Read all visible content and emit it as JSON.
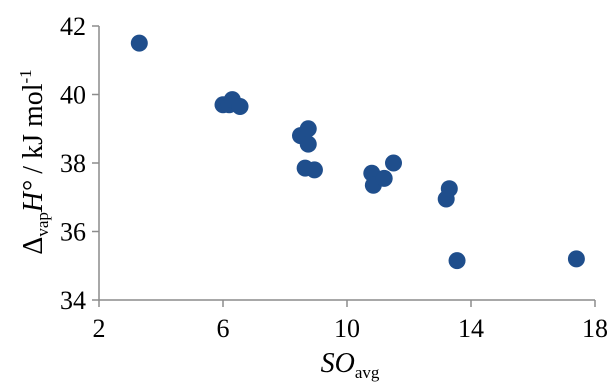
{
  "chart_data": {
    "type": "scatter",
    "xlabel": {
      "main": "SO",
      "sub": "avg"
    },
    "ylabel": {
      "delta": "Δ",
      "sub": "vap",
      "symbol": "H°",
      "unit": " / kJ mol",
      "sup": "-1"
    },
    "xlim": [
      2,
      18
    ],
    "ylim": [
      34,
      42
    ],
    "xticks": [
      2,
      6,
      10,
      14,
      18
    ],
    "yticks": [
      34,
      36,
      38,
      40,
      42
    ],
    "marker_color": "#1f4e8c",
    "grid": false,
    "legend": "none",
    "points": [
      {
        "x": 3.3,
        "y": 41.5
      },
      {
        "x": 6.0,
        "y": 39.7
      },
      {
        "x": 6.2,
        "y": 39.7
      },
      {
        "x": 6.3,
        "y": 39.85
      },
      {
        "x": 6.55,
        "y": 39.65
      },
      {
        "x": 8.5,
        "y": 38.8
      },
      {
        "x": 8.75,
        "y": 39.0
      },
      {
        "x": 8.75,
        "y": 38.55
      },
      {
        "x": 8.65,
        "y": 37.85
      },
      {
        "x": 8.95,
        "y": 37.8
      },
      {
        "x": 10.8,
        "y": 37.7
      },
      {
        "x": 10.85,
        "y": 37.35
      },
      {
        "x": 11.2,
        "y": 37.55
      },
      {
        "x": 11.5,
        "y": 38.0
      },
      {
        "x": 13.2,
        "y": 36.95
      },
      {
        "x": 13.3,
        "y": 37.25
      },
      {
        "x": 13.55,
        "y": 35.15
      },
      {
        "x": 17.4,
        "y": 35.2
      }
    ]
  }
}
